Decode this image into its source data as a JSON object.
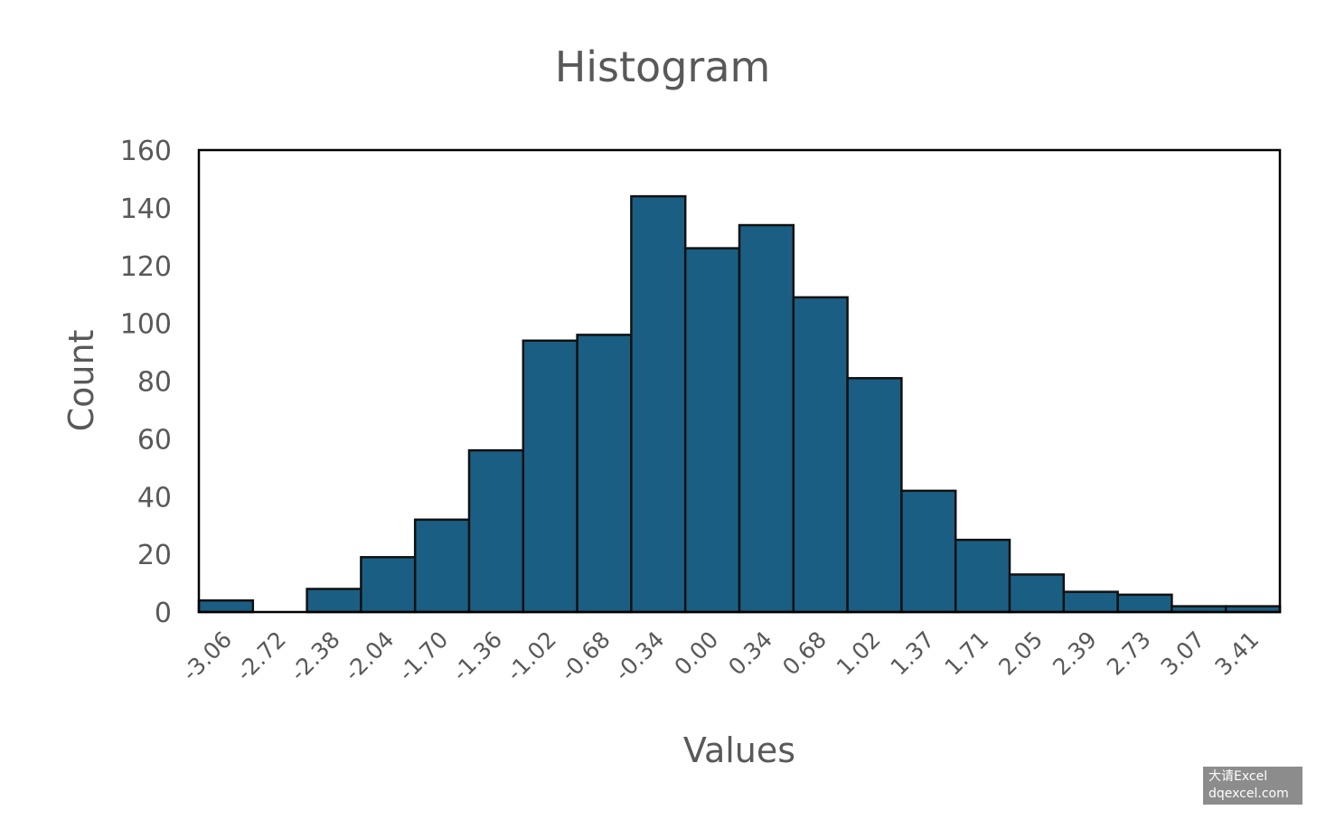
{
  "chart_data": {
    "type": "bar",
    "title": "Histogram",
    "xlabel": "Values",
    "ylabel": "Count",
    "ylim": [
      0,
      160
    ],
    "yticks": [
      "0",
      "20",
      "40",
      "60",
      "80",
      "100",
      "120",
      "140",
      "160"
    ],
    "grid": false,
    "legend": "none",
    "categories": [
      "-3.06",
      "-2.72",
      "-2.38",
      "-2.04",
      "-1.70",
      "-1.36",
      "-1.02",
      "-0.68",
      "-0.34",
      "0.00",
      "0.34",
      "0.68",
      "1.02",
      "1.37",
      "1.71",
      "2.05",
      "2.39",
      "2.73",
      "3.07",
      "3.41"
    ],
    "values": [
      4,
      0,
      8,
      19,
      32,
      56,
      94,
      96,
      144,
      126,
      134,
      109,
      81,
      42,
      25,
      13,
      7,
      6,
      2,
      2
    ],
    "colors": {
      "bar_fill": "#1a5f83",
      "bar_edge": "#111111",
      "text": "#595959"
    }
  },
  "watermark": {
    "line1": "大请Excel",
    "line2": "dqexcel.com"
  }
}
